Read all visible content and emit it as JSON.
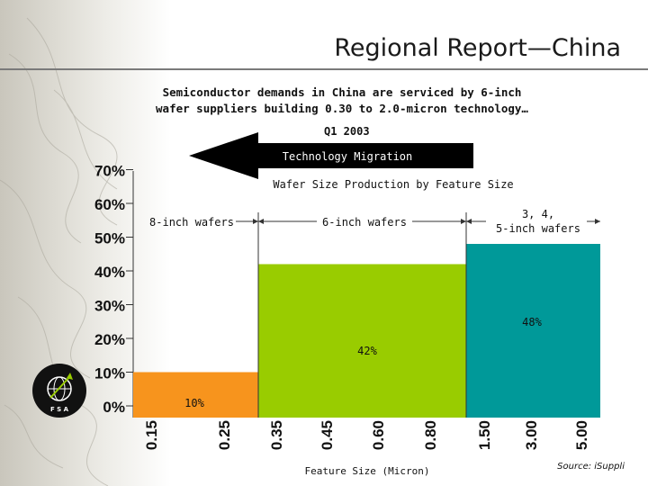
{
  "slide": {
    "title": "Regional Report—China",
    "subtitle_line1": "Semiconductor demands in China are serviced by 6-inch",
    "subtitle_line2": "wafer suppliers building 0.30 to 2.0-micron technology…",
    "period": "Q1 2003",
    "logo_text": "F  S  A",
    "source": "Source: iSuppli"
  },
  "chart_data": {
    "type": "bar",
    "title": "Wafer Size Production by Feature Size",
    "xlabel": "Feature Size (Micron)",
    "ylabel": "",
    "ylim": [
      0,
      70
    ],
    "y_ticks": [
      "0%",
      "10%",
      "20%",
      "30%",
      "40%",
      "50%",
      "60%",
      "70%"
    ],
    "x_ticks": [
      "0.15",
      "0.25",
      "0.35",
      "0.45",
      "0.60",
      "0.80",
      "1.50",
      "3.00",
      "5.00"
    ],
    "arrow_label": "Technology Migration",
    "bars": [
      {
        "name": "8-inch wafers",
        "value": 10,
        "value_label": "10%",
        "x_start": "0.15",
        "x_end": "0.35",
        "color": "#f7941d"
      },
      {
        "name": "6-inch wafers",
        "value": 42,
        "value_label": "42%",
        "x_start": "0.35",
        "x_end": "1.50",
        "color": "#99cc00"
      },
      {
        "name": "3, 4,\n5-inch wafers",
        "value": 48,
        "value_label": "48%",
        "x_start": "1.50",
        "x_end": "5.00",
        "color": "#009999"
      }
    ]
  }
}
